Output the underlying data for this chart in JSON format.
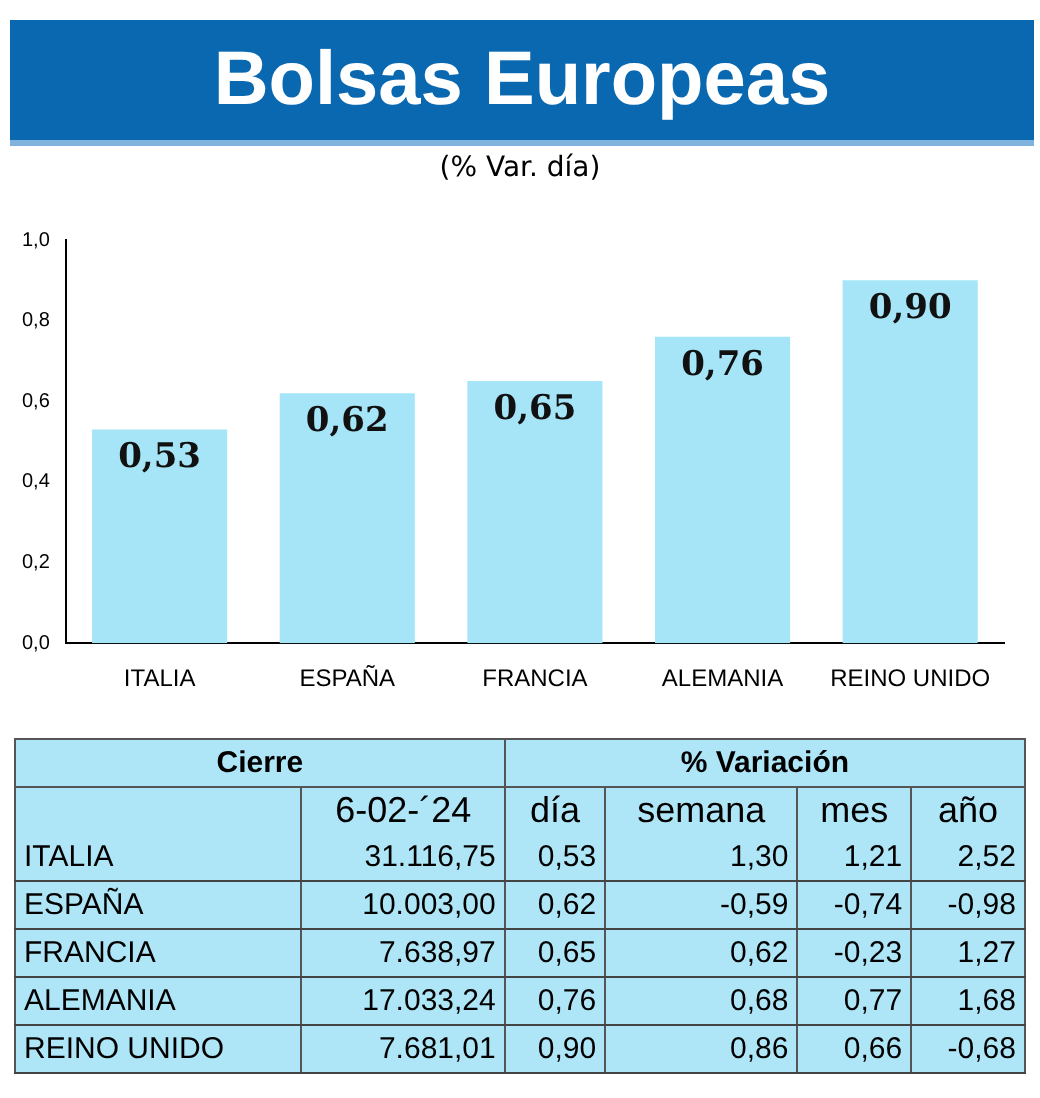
{
  "chart_data": [
    {
      "type": "bar",
      "title": "Bolsas Europeas",
      "subtitle": "(% Var. día)",
      "categories": [
        "ITALIA",
        "ESPAÑA",
        "FRANCIA",
        "ALEMANIA",
        "REINO UNIDO"
      ],
      "values": [
        0.53,
        0.62,
        0.65,
        0.76,
        0.9
      ],
      "value_labels": [
        "0,53",
        "0,62",
        "0,65",
        "0,76",
        "0,90"
      ],
      "color": "#a6e4f7",
      "ylim": [
        0,
        1
      ],
      "yticks": [
        {
          "value": 0,
          "label": "0,0"
        },
        {
          "value": 0.2,
          "label": "0,2"
        },
        {
          "value": 0.4,
          "label": "0,4"
        },
        {
          "value": 0.6,
          "label": "0,6"
        },
        {
          "value": 0.8,
          "label": "0,8"
        },
        {
          "value": 1,
          "label": "1,0"
        }
      ],
      "grid": false,
      "legend": false
    },
    {
      "type": "other",
      "categories": [
        "ITALIA",
        "ESPAÑA",
        "FRANCIA",
        "ALEMANIA",
        "REINO UNIDO"
      ],
      "annotations": [
        "Cierre",
        "% Variación"
      ],
      "series": [
        {
          "name": "6-02-´24",
          "values": [
            31116.75,
            10003.0,
            7638.97,
            17033.24,
            7681.01
          ],
          "value_labels": [
            "31.116,75",
            "10.003,00",
            "7.638,97",
            "17.033,24",
            "7.681,01"
          ]
        },
        {
          "name": "día",
          "values": [
            0.53,
            0.62,
            0.65,
            0.76,
            0.9
          ],
          "value_labels": [
            "0,53",
            "0,62",
            "0,65",
            "0,76",
            "0,90"
          ]
        },
        {
          "name": "semana",
          "values": [
            1.3,
            -0.59,
            0.62,
            0.68,
            0.86
          ],
          "value_labels": [
            "1,30",
            "-0,59",
            "0,62",
            "0,68",
            "0,86"
          ]
        },
        {
          "name": "mes",
          "values": [
            1.21,
            -0.74,
            -0.23,
            0.77,
            0.66
          ],
          "value_labels": [
            "1,21",
            "-0,74",
            "-0,23",
            "0,77",
            "0,66"
          ]
        },
        {
          "name": "año",
          "values": [
            2.52,
            -0.98,
            1.27,
            1.68,
            -0.68
          ],
          "value_labels": [
            "2,52",
            "-0,98",
            "1,27",
            "1,68",
            "-0,68"
          ]
        }
      ]
    }
  ]
}
